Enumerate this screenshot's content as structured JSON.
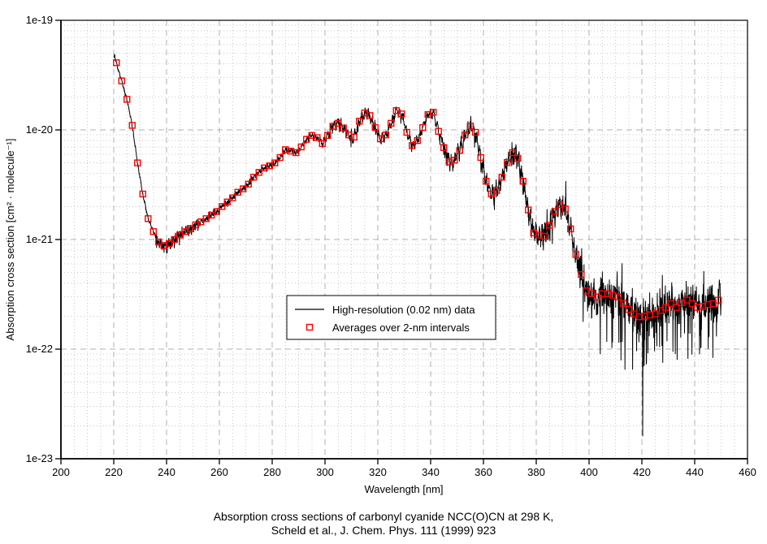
{
  "chart_data": {
    "type": "line",
    "xlabel": "Wavelength [nm]",
    "ylabel": "Absorption cross section [cm² · molecule⁻¹]",
    "caption_line1": "Absorption cross sections of carbonyl cyanide NCC(O)CN at 298 K,",
    "caption_line2": "Scheld et al., J. Chem. Phys. 111 (1999) 923",
    "x_axis": {
      "min": 200,
      "max": 460,
      "major_ticks": [
        200,
        220,
        240,
        260,
        280,
        300,
        320,
        340,
        360,
        380,
        400,
        420,
        440,
        460
      ],
      "minor_step": 5,
      "grid": true
    },
    "y_axis": {
      "scale": "log",
      "min": 1e-23,
      "max": 1e-19,
      "tick_labels": [
        "1e-19",
        "1e-20",
        "1e-21",
        "1e-22",
        "1e-23"
      ],
      "tick_values": [
        1e-19,
        1e-20,
        1e-21,
        1e-22,
        1e-23
      ],
      "grid": true
    },
    "legend": {
      "position": "inside-center-left",
      "entries": [
        {
          "label": "High-resolution (0.02 nm) data",
          "type": "line",
          "color": "#000000"
        },
        {
          "label": "Averages over 2-nm intervals",
          "type": "open-square",
          "color": "#ff0000"
        }
      ]
    },
    "series": [
      {
        "name": "Averages over 2-nm intervals",
        "marker": "open-square",
        "color": "#ff0000",
        "x": [
          221,
          223,
          225,
          227,
          229,
          231,
          233,
          235,
          237,
          239,
          241,
          243,
          245,
          247,
          249,
          251,
          253,
          255,
          257,
          259,
          261,
          263,
          265,
          267,
          269,
          271,
          273,
          275,
          277,
          279,
          281,
          283,
          285,
          287,
          289,
          291,
          293,
          295,
          297,
          299,
          301,
          303,
          305,
          307,
          309,
          311,
          313,
          315,
          317,
          319,
          321,
          323,
          325,
          327,
          329,
          331,
          333,
          335,
          337,
          339,
          341,
          343,
          345,
          347,
          349,
          351,
          353,
          355,
          357,
          359,
          361,
          363,
          365,
          367,
          369,
          371,
          373,
          375,
          377,
          379,
          381,
          383,
          385,
          387,
          389,
          391,
          393,
          395,
          397,
          399,
          401,
          403,
          405,
          407,
          409,
          411,
          413,
          415,
          417,
          419,
          421,
          423,
          425,
          427,
          429,
          431,
          433,
          435,
          437,
          439,
          441,
          443,
          445,
          447,
          449
        ],
        "y": [
          4.1e-20,
          2.8e-20,
          1.9e-20,
          1.1e-20,
          5e-21,
          2.6e-21,
          1.55e-21,
          1.18e-21,
          9.5e-22,
          8.8e-22,
          9.2e-22,
          1e-21,
          1.1e-21,
          1.18e-21,
          1.26e-21,
          1.36e-21,
          1.45e-21,
          1.55e-21,
          1.67e-21,
          1.8e-21,
          2e-21,
          2.2e-21,
          2.4e-21,
          2.7e-21,
          2.9e-21,
          3.2e-21,
          3.7e-21,
          4.1e-21,
          4.5e-21,
          4.7e-21,
          5e-21,
          5.6e-21,
          6.6e-21,
          6.4e-21,
          6.2e-21,
          7e-21,
          8.2e-21,
          8.9e-21,
          8.5e-21,
          7.5e-21,
          8.9e-21,
          1.08e-20,
          1.15e-20,
          1.04e-20,
          9e-21,
          8.6e-21,
          1.2e-20,
          1.43e-20,
          1.35e-20,
          1.05e-20,
          8.3e-21,
          9e-21,
          1.15e-20,
          1.5e-20,
          1.4e-20,
          9.5e-21,
          7.2e-21,
          8e-21,
          1.05e-20,
          1.38e-20,
          1.45e-20,
          9.7e-21,
          6.9e-21,
          5.1e-21,
          5.3e-21,
          6.5e-21,
          9e-21,
          1.08e-20,
          9.5e-21,
          5.6e-21,
          3.4e-21,
          2.6e-21,
          2.8e-21,
          3.7e-21,
          5.05e-21,
          6.2e-21,
          5.5e-21,
          3.4e-21,
          1.86e-21,
          1.15e-21,
          1.1e-21,
          1.07e-21,
          1.35e-21,
          1.8e-21,
          2.08e-21,
          1.9e-21,
          1.25e-21,
          7.3e-22,
          4.8e-22,
          3.4e-22,
          3.2e-22,
          3e-22,
          3.2e-22,
          3.2e-22,
          3.1e-22,
          3e-22,
          2.6e-22,
          2.3e-22,
          2.1e-22,
          1.97e-22,
          2e-22,
          2.05e-22,
          2.1e-22,
          2.25e-22,
          2.4e-22,
          2.6e-22,
          2.4e-22,
          2.65e-22,
          2.8e-22,
          2.6e-22,
          2.4e-22,
          2.45e-22,
          2.55e-22,
          2.6e-22,
          2.8e-22
        ]
      },
      {
        "name": "High-resolution (0.02 nm) data",
        "color": "#000000",
        "derived": "interpolated from averages with fine-structure noise",
        "x_start": 220,
        "x_end": 450,
        "step_nm": 0.08,
        "noise_seed": 982451653,
        "noise_regions": [
          {
            "from": 220,
            "to": 236,
            "jitter": 0.012,
            "osc": 0.008,
            "period": 0.9,
            "down_p": 0.0,
            "down": 0.0,
            "up_p": 0.0,
            "up": 0.0
          },
          {
            "from": 236,
            "to": 252,
            "jitter": 0.035,
            "osc": 0.02,
            "period": 0.8,
            "down_p": 0.025,
            "down": 0.1,
            "up_p": 0.01,
            "up": 0.05
          },
          {
            "from": 252,
            "to": 298,
            "jitter": 0.018,
            "osc": 0.012,
            "period": 1.0,
            "down_p": 0.012,
            "down": 0.05,
            "up_p": 0.008,
            "up": 0.04
          },
          {
            "from": 298,
            "to": 344,
            "jitter": 0.028,
            "osc": 0.03,
            "period": 1.3,
            "down_p": 0.02,
            "down": 0.09,
            "up_p": 0.01,
            "up": 0.05
          },
          {
            "from": 344,
            "to": 372,
            "jitter": 0.045,
            "osc": 0.04,
            "period": 1.2,
            "down_p": 0.03,
            "down": 0.13,
            "up_p": 0.015,
            "up": 0.08
          },
          {
            "from": 372,
            "to": 396,
            "jitter": 0.07,
            "osc": 0.05,
            "period": 1.1,
            "down_p": 0.04,
            "down": 0.18,
            "up_p": 0.03,
            "up": 0.28
          },
          {
            "from": 396,
            "to": 450.1,
            "jitter": 0.12,
            "osc": 0.03,
            "period": 0.9,
            "down_p": 0.06,
            "down": 0.5,
            "up_p": 0.05,
            "up": 0.18
          }
        ],
        "deep_spikes": [
          {
            "x": 420.3,
            "v": 1.6e-23
          },
          {
            "x": 413.6,
            "v": 6.5e-23
          },
          {
            "x": 427.9,
            "v": 7.5e-23
          },
          {
            "x": 433.4,
            "v": 8e-23
          },
          {
            "x": 441.8,
            "v": 9e-23
          },
          {
            "x": 404.2,
            "v": 9e-23
          }
        ]
      }
    ]
  },
  "colors": {
    "background": "#ffffff",
    "line": "#000000",
    "marker": "#ff0000",
    "grid_minor": "#c9c9c9",
    "grid_major": "#b0b0b0",
    "axis": "#000000",
    "text": "#000000"
  }
}
